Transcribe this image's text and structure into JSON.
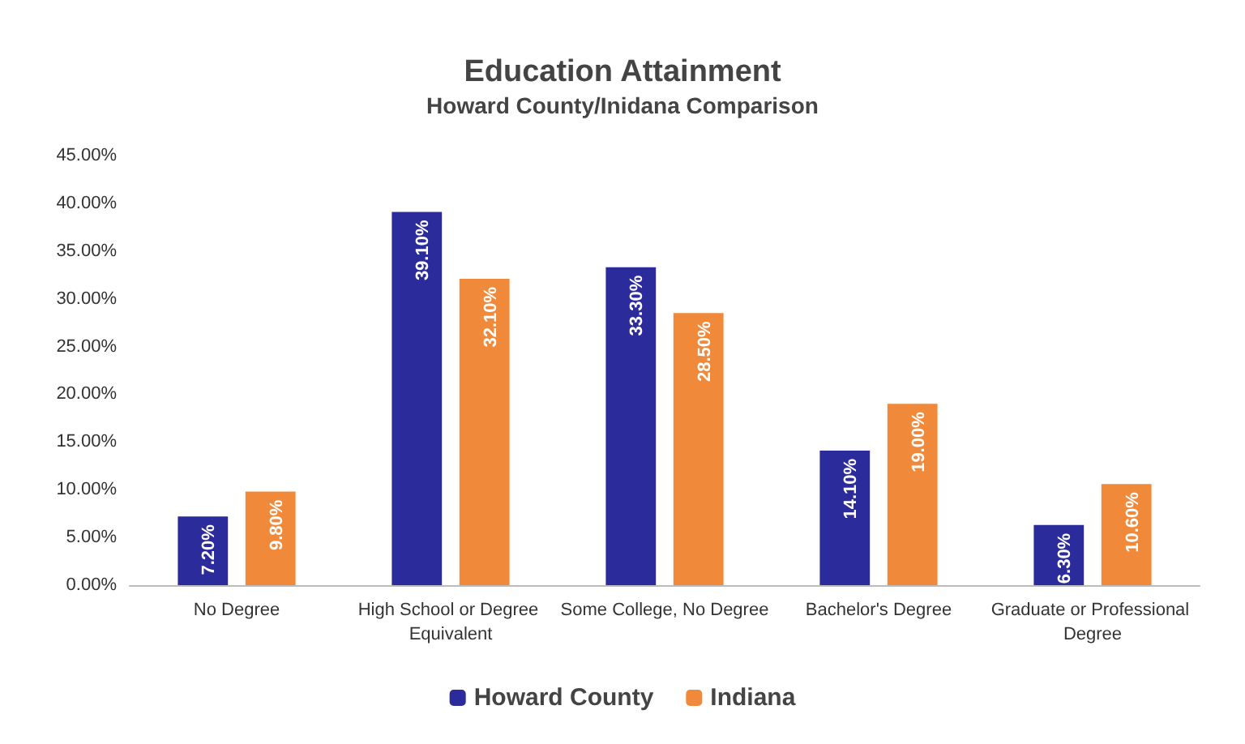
{
  "chart_data": {
    "type": "bar",
    "title": "Education Attainment",
    "subtitle": "Howard County/Inidana Comparison",
    "categories": [
      "No Degree",
      "High School or Degree Equivalent",
      "Some College, No Degree",
      "Bachelor's Degree",
      "Graduate or Professional Degree"
    ],
    "series": [
      {
        "name": "Howard County",
        "color": "#2b2b9c",
        "values": [
          7.2,
          39.1,
          33.3,
          14.1,
          6.3
        ],
        "value_labels": [
          "7.20%",
          "39.10%",
          "33.30%",
          "14.10%",
          "6.30%"
        ]
      },
      {
        "name": "Indiana",
        "color": "#f0893a",
        "values": [
          9.8,
          32.1,
          28.5,
          19.0,
          10.6
        ],
        "value_labels": [
          "9.80%",
          "32.10%",
          "28.50%",
          "19.00%",
          "10.60%"
        ]
      }
    ],
    "ylim": [
      0,
      45
    ],
    "yticks": [
      {
        "value": 0,
        "label": "0.00%"
      },
      {
        "value": 5,
        "label": "5.00%"
      },
      {
        "value": 10,
        "label": "10.00%"
      },
      {
        "value": 15,
        "label": "15.00%"
      },
      {
        "value": 20,
        "label": "20.00%"
      },
      {
        "value": 25,
        "label": "25.00%"
      },
      {
        "value": 30,
        "label": "30.00%"
      },
      {
        "value": 35,
        "label": "35.00%"
      },
      {
        "value": 40,
        "label": "40.00%"
      },
      {
        "value": 45,
        "label": "45.00%"
      }
    ],
    "grid": false,
    "legend": "bottom"
  }
}
